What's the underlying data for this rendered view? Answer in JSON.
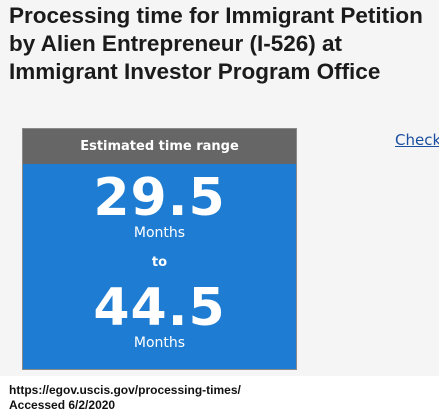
{
  "page": {
    "title": "Processing time for Immigrant Petition\nby Alien Entrepreneur (I-526) at\nImmigrant Investor Program Office",
    "side_link": "Check"
  },
  "estimate_card": {
    "header": "Estimated time range",
    "min_value": "29.5",
    "min_unit": "Months",
    "separator": "to",
    "max_value": "44.5",
    "max_unit": "Months",
    "colors": {
      "header_bg": "#666666",
      "body_bg": "#1e7dd2",
      "text": "#ffffff"
    }
  },
  "footer": {
    "source_url": "https://egov.uscis.gov/processing-times/",
    "accessed": "Accessed 6/2/2020"
  }
}
